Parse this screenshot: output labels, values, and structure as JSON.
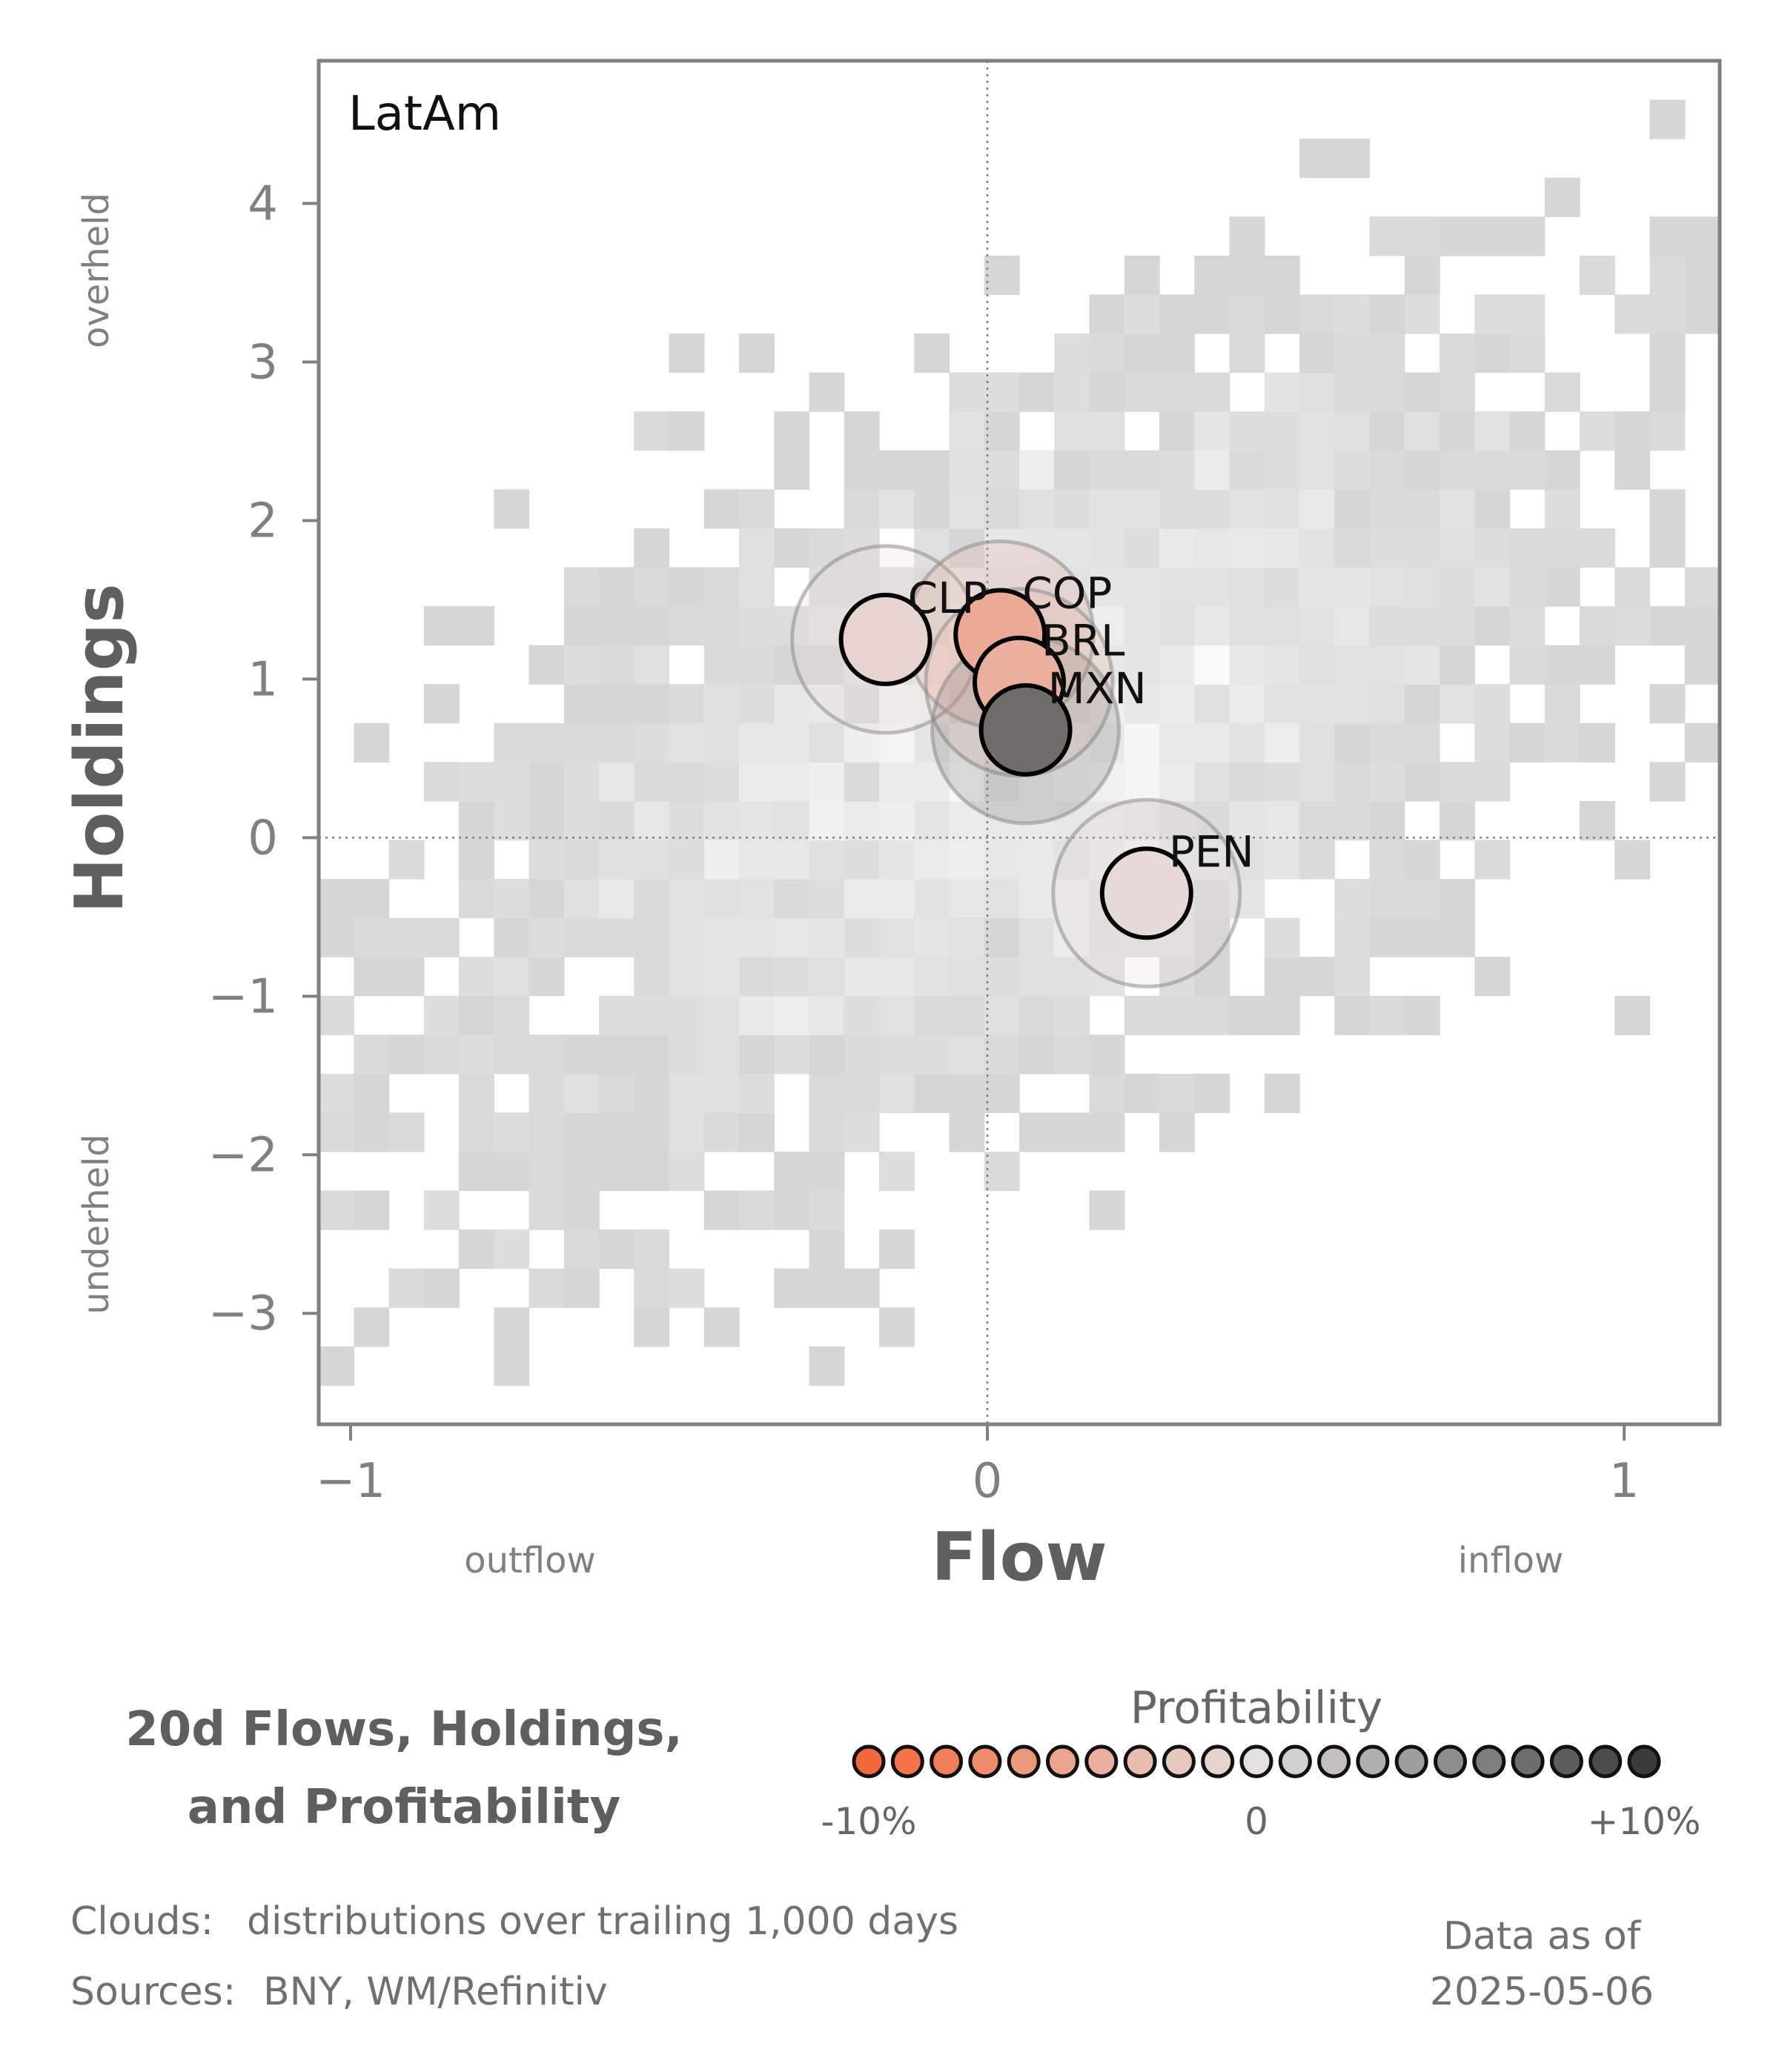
{
  "chart_data": {
    "type": "scatter",
    "panel_label": "LatAm",
    "xlabel": "Flow",
    "ylabel": "Holdings",
    "x_side_labels": {
      "low": "outflow",
      "high": "inflow"
    },
    "y_side_labels": {
      "high": "overheld",
      "low": "underheld"
    },
    "xlim": [
      -1.05,
      1.15
    ],
    "ylim": [
      -3.7,
      4.9
    ],
    "x_ticks": [
      -1,
      0,
      1
    ],
    "x_tick_labels": [
      "−1",
      "0",
      "1"
    ],
    "y_ticks": [
      -3,
      -2,
      -1,
      0,
      1,
      2,
      3,
      4
    ],
    "y_tick_labels": [
      "−3",
      "−2",
      "−1",
      "0",
      "1",
      "2",
      "3",
      "4"
    ],
    "grid": false,
    "reference_lines": {
      "x": 0,
      "y": 0
    },
    "points": [
      {
        "label": "CLP",
        "x": -0.16,
        "y": 1.25,
        "profitability": -0.01
      },
      {
        "label": "COP",
        "x": 0.02,
        "y": 1.28,
        "profitability": -0.045
      },
      {
        "label": "BRL",
        "x": 0.05,
        "y": 0.98,
        "profitability": -0.04
      },
      {
        "label": "MXN",
        "x": 0.06,
        "y": 0.68,
        "profitability": 0.07
      },
      {
        "label": "PEN",
        "x": 0.25,
        "y": -0.35,
        "profitability": -0.005
      }
    ],
    "cloud": {
      "description": "distributions over trailing 1,000 days",
      "correlation": 0.55,
      "center": [
        0.05,
        0.55
      ],
      "spread": [
        0.45,
        1.35
      ]
    },
    "colorscale": {
      "title": "Profitability",
      "tick_labels": [
        "-10%",
        "0",
        "+10%"
      ],
      "range": [
        -0.1,
        0.1
      ],
      "low_color": "#f2683a",
      "mid_color": "#e4e0df",
      "high_color": "#3b3b3b"
    }
  },
  "title_lines": [
    "20d Flows, Holdings,",
    "and Profitability"
  ],
  "footer": {
    "clouds_label": "Clouds:",
    "clouds_text": "distributions over trailing 1,000 days",
    "sources_label": "Sources:",
    "sources_text": "BNY, WM/Refinitiv",
    "data_as_of_label": "Data as of",
    "data_as_of_date": "2025-05-06"
  }
}
